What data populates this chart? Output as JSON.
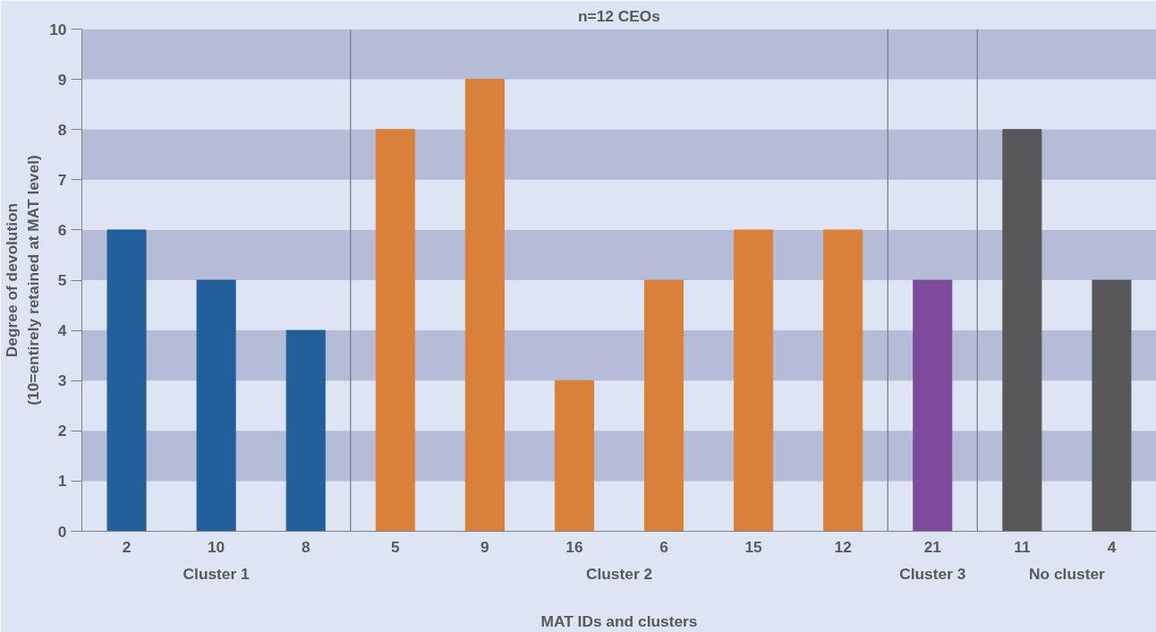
{
  "chart_data": {
    "type": "bar",
    "title": "n=12 CEOs",
    "xlabel": "MAT IDs and clusters",
    "ylabel": "Degree of devolution\n(10=entirely retained at MAT level)",
    "categories": [
      "2",
      "10",
      "8",
      "5",
      "9",
      "16",
      "6",
      "15",
      "12",
      "21",
      "11",
      "4"
    ],
    "values": [
      6,
      5,
      4,
      8,
      9,
      3,
      5,
      6,
      6,
      5,
      8,
      5
    ],
    "colors": [
      "#235f9b",
      "#235f9b",
      "#235f9b",
      "#d9803a",
      "#d9803a",
      "#d9803a",
      "#d9803a",
      "#d9803a",
      "#d9803a",
      "#7e4b9c",
      "#58585a",
      "#58585a"
    ],
    "ylim": [
      0,
      10
    ],
    "yticks": [
      0,
      1,
      2,
      3,
      4,
      5,
      6,
      7,
      8,
      9,
      10
    ],
    "bands": [
      {
        "axis": "y",
        "from": 1,
        "to": 2,
        "color": "#b4bcd8"
      },
      {
        "axis": "y",
        "from": 3,
        "to": 4,
        "color": "#b4bcd8"
      },
      {
        "axis": "y",
        "from": 5,
        "to": 6,
        "color": "#b4bcd8"
      },
      {
        "axis": "y",
        "from": 7,
        "to": 8,
        "color": "#b4bcd8"
      },
      {
        "axis": "y",
        "from": 9,
        "to": 10,
        "color": "#b4bcd8"
      }
    ],
    "annotations": [
      "Cluster 1",
      "Cluster 2",
      "Cluster 3",
      "No cluster"
    ]
  }
}
